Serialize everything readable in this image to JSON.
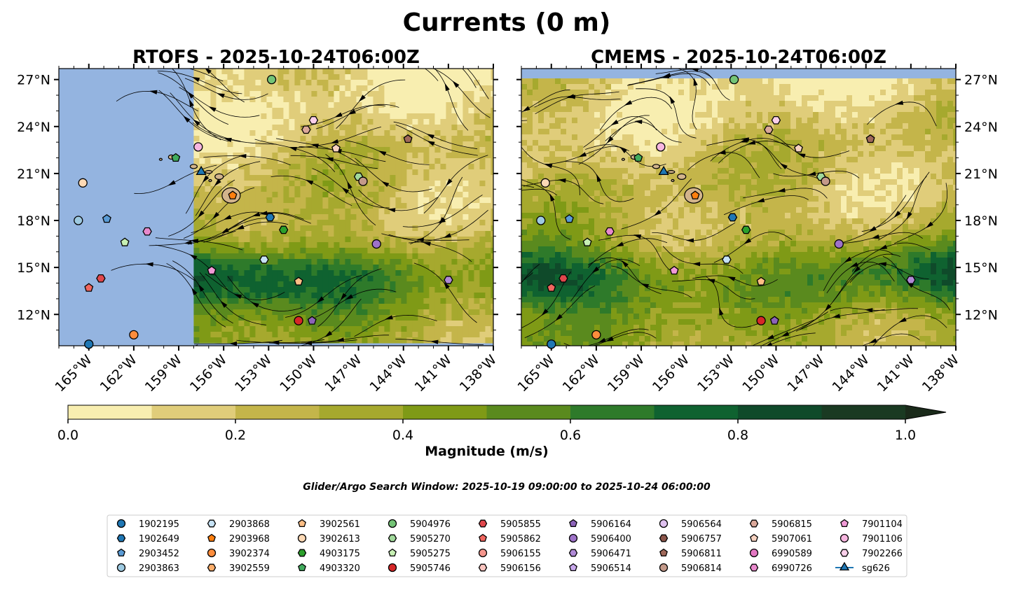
{
  "figure": {
    "title": "Currents (0 m)",
    "window_text": "Glider/Argo Search Window: 2025-10-19 09:00:00 to 2025-10-24 06:00:00"
  },
  "panels": [
    {
      "id": "rtofs",
      "title": "RTOFS - 2025-10-24T06:00Z",
      "lat_labels_side": "left",
      "data_lon_min": -158.0
    },
    {
      "id": "cmems",
      "title": "CMEMS - 2025-10-24T06:00Z",
      "lat_labels_side": "right",
      "data_lon_min": -168.0
    }
  ],
  "axes": {
    "lon_range": [
      -167.0,
      -138.0
    ],
    "lat_range": [
      10.0,
      27.7
    ],
    "lon_ticks": [
      -165,
      -162,
      -159,
      -156,
      -153,
      -150,
      -147,
      -144,
      -141,
      -138
    ],
    "lon_tick_labels": [
      "165°W",
      "162°W",
      "159°W",
      "156°W",
      "153°W",
      "150°W",
      "147°W",
      "144°W",
      "141°W",
      "138°W"
    ],
    "lat_ticks": [
      12,
      15,
      18,
      21,
      24,
      27
    ],
    "lat_tick_labels": [
      "12°N",
      "15°N",
      "18°N",
      "21°N",
      "24°N",
      "27°N"
    ]
  },
  "colorbar": {
    "label": "Magnitude (m/s)",
    "levels": [
      0,
      0.1,
      0.2,
      0.3,
      0.4,
      0.5,
      0.6,
      0.7,
      0.8,
      0.9,
      1.0
    ],
    "tick_values": [
      0,
      0.2,
      0.4,
      0.6,
      0.8,
      1.0
    ],
    "tick_labels": [
      "0.0",
      "0.2",
      "0.4",
      "0.6",
      "0.8",
      "1.0"
    ],
    "colors": [
      "#f8eeb0",
      "#e0cd7a",
      "#c4b54a",
      "#a6a92e",
      "#7f9a16",
      "#5a8a1e",
      "#2e7a2a",
      "#0f6230",
      "#0f4a2a",
      "#1a3a22",
      "#1a2a1a"
    ],
    "extend": "max"
  },
  "colors": {
    "ocean_no_data": "#94b4e0",
    "land": "#d2b48c",
    "streamline": "#000000"
  },
  "chart_data": [
    {
      "type": "scatter",
      "title": "RTOFS - 2025-10-24T06:00Z",
      "field": "surface current magnitude (m/s) with streamlines",
      "xlim": [
        -167.0,
        -138.0
      ],
      "ylim": [
        10.0,
        27.7
      ],
      "points": [
        {
          "name": "1902195",
          "lon": -165.0,
          "lat": 10.1
        },
        {
          "name": "3902374",
          "lon": -162.0,
          "lat": 10.7
        },
        {
          "name": "2903863",
          "lon": -165.7,
          "lat": 18.0
        },
        {
          "name": "3902613",
          "lon": -165.4,
          "lat": 20.4
        },
        {
          "name": "2903452",
          "lon": -163.8,
          "lat": 18.1
        },
        {
          "name": "5905275",
          "lon": -162.6,
          "lat": 16.6
        },
        {
          "name": "5905862",
          "lon": -165.0,
          "lat": 13.7
        },
        {
          "name": "5905855",
          "lon": -164.2,
          "lat": 14.3
        },
        {
          "name": "6990726",
          "lon": -161.1,
          "lat": 17.3
        },
        {
          "name": "4903320",
          "lon": -159.2,
          "lat": 22.0
        },
        {
          "name": "7901106",
          "lon": -157.7,
          "lat": 22.7
        },
        {
          "name": "sg626",
          "lon": -157.5,
          "lat": 21.1
        },
        {
          "name": "2903968",
          "lon": -155.4,
          "lat": 19.6
        },
        {
          "name": "1902649",
          "lon": -152.9,
          "lat": 18.2
        },
        {
          "name": "4903175",
          "lon": -152.0,
          "lat": 17.4
        },
        {
          "name": "2903868",
          "lon": -153.3,
          "lat": 15.5
        },
        {
          "name": "5904976",
          "lon": -152.8,
          "lat": 27.0
        },
        {
          "name": "7902266",
          "lon": -150.0,
          "lat": 24.4
        },
        {
          "name": "5906815",
          "lon": -150.5,
          "lat": 23.8
        },
        {
          "name": "7901104",
          "lon": -156.8,
          "lat": 14.8
        },
        {
          "name": "5907061",
          "lon": -148.5,
          "lat": 22.6
        },
        {
          "name": "5905270",
          "lon": -147.0,
          "lat": 20.8
        },
        {
          "name": "5906814",
          "lon": -146.7,
          "lat": 20.5
        },
        {
          "name": "5906811",
          "lon": -143.7,
          "lat": 23.2
        },
        {
          "name": "5906400",
          "lon": -145.8,
          "lat": 16.5
        },
        {
          "name": "3902561",
          "lon": -151.0,
          "lat": 14.1
        },
        {
          "name": "5905746",
          "lon": -151.0,
          "lat": 11.6
        },
        {
          "name": "5906164",
          "lon": -150.1,
          "lat": 11.6
        },
        {
          "name": "5906471",
          "lon": -141.0,
          "lat": 14.2
        }
      ]
    },
    {
      "type": "scatter",
      "title": "CMEMS - 2025-10-24T06:00Z",
      "field": "surface current magnitude (m/s) with streamlines",
      "xlim": [
        -167.0,
        -138.0
      ],
      "ylim": [
        10.0,
        27.7
      ],
      "points": [
        {
          "name": "1902195",
          "lon": -165.0,
          "lat": 10.1
        },
        {
          "name": "3902374",
          "lon": -162.0,
          "lat": 10.7
        },
        {
          "name": "2903863",
          "lon": -165.7,
          "lat": 18.0
        },
        {
          "name": "3902613",
          "lon": -165.4,
          "lat": 20.4
        },
        {
          "name": "2903452",
          "lon": -163.8,
          "lat": 18.1
        },
        {
          "name": "5905275",
          "lon": -162.6,
          "lat": 16.6
        },
        {
          "name": "5905862",
          "lon": -165.0,
          "lat": 13.7
        },
        {
          "name": "5905855",
          "lon": -164.2,
          "lat": 14.3
        },
        {
          "name": "6990726",
          "lon": -161.1,
          "lat": 17.3
        },
        {
          "name": "4903320",
          "lon": -159.2,
          "lat": 22.0
        },
        {
          "name": "7901106",
          "lon": -157.7,
          "lat": 22.7
        },
        {
          "name": "sg626",
          "lon": -157.5,
          "lat": 21.1
        },
        {
          "name": "2903968",
          "lon": -155.4,
          "lat": 19.6
        },
        {
          "name": "1902649",
          "lon": -152.9,
          "lat": 18.2
        },
        {
          "name": "4903175",
          "lon": -152.0,
          "lat": 17.4
        },
        {
          "name": "2903868",
          "lon": -153.3,
          "lat": 15.5
        },
        {
          "name": "5904976",
          "lon": -152.8,
          "lat": 27.0
        },
        {
          "name": "7902266",
          "lon": -150.0,
          "lat": 24.4
        },
        {
          "name": "5906815",
          "lon": -150.5,
          "lat": 23.8
        },
        {
          "name": "7901104",
          "lon": -156.8,
          "lat": 14.8
        },
        {
          "name": "5907061",
          "lon": -148.5,
          "lat": 22.6
        },
        {
          "name": "5905270",
          "lon": -147.0,
          "lat": 20.8
        },
        {
          "name": "5906814",
          "lon": -146.7,
          "lat": 20.5
        },
        {
          "name": "5906811",
          "lon": -143.7,
          "lat": 23.2
        },
        {
          "name": "5906400",
          "lon": -145.8,
          "lat": 16.5
        },
        {
          "name": "3902561",
          "lon": -151.0,
          "lat": 14.1
        },
        {
          "name": "5905746",
          "lon": -151.0,
          "lat": 11.6
        },
        {
          "name": "5906164",
          "lon": -150.1,
          "lat": 11.6
        },
        {
          "name": "5906471",
          "lon": -141.0,
          "lat": 14.2
        }
      ]
    }
  ],
  "legend": {
    "placement": "bottom-center",
    "columns": 9,
    "items": [
      {
        "label": "1902195",
        "marker": "circle",
        "color": "#1f77b4"
      },
      {
        "label": "1902649",
        "marker": "hexagon",
        "color": "#1f77b4"
      },
      {
        "label": "2903452",
        "marker": "pentagon",
        "color": "#5a9bd5"
      },
      {
        "label": "2903863",
        "marker": "circle",
        "color": "#9ecae1"
      },
      {
        "label": "2903868",
        "marker": "hexagon",
        "color": "#c6e2f5"
      },
      {
        "label": "2903968",
        "marker": "pentagon",
        "color": "#ff7f0e"
      },
      {
        "label": "3902374",
        "marker": "circle",
        "color": "#fd8d3c"
      },
      {
        "label": "3902559",
        "marker": "hexagon",
        "color": "#fdae6b"
      },
      {
        "label": "3902561",
        "marker": "pentagon",
        "color": "#fdbe85"
      },
      {
        "label": "3902613",
        "marker": "circle",
        "color": "#fdd9b5"
      },
      {
        "label": "4903175",
        "marker": "hexagon",
        "color": "#2ca02c"
      },
      {
        "label": "4903320",
        "marker": "pentagon",
        "color": "#41ab5d"
      },
      {
        "label": "5904976",
        "marker": "circle",
        "color": "#74c476"
      },
      {
        "label": "5905270",
        "marker": "hexagon",
        "color": "#a1d99b"
      },
      {
        "label": "5905275",
        "marker": "pentagon",
        "color": "#c7f0b4"
      },
      {
        "label": "5905746",
        "marker": "circle",
        "color": "#d62728"
      },
      {
        "label": "5905855",
        "marker": "hexagon",
        "color": "#e0474c"
      },
      {
        "label": "5905862",
        "marker": "pentagon",
        "color": "#f0665f"
      },
      {
        "label": "5906155",
        "marker": "circle",
        "color": "#f4958c"
      },
      {
        "label": "5906156",
        "marker": "hexagon",
        "color": "#fbc5c0"
      },
      {
        "label": "5906164",
        "marker": "pentagon",
        "color": "#8c63b8"
      },
      {
        "label": "5906400",
        "marker": "circle",
        "color": "#9e72c8"
      },
      {
        "label": "5906471",
        "marker": "hexagon",
        "color": "#b08ad6"
      },
      {
        "label": "5906514",
        "marker": "pentagon",
        "color": "#c8a8ec"
      },
      {
        "label": "5906564",
        "marker": "circle",
        "color": "#e0c2f0"
      },
      {
        "label": "5906757",
        "marker": "hexagon",
        "color": "#8c564b"
      },
      {
        "label": "5906811",
        "marker": "pentagon",
        "color": "#a0695a"
      },
      {
        "label": "5906814",
        "marker": "circle",
        "color": "#c49a8a"
      },
      {
        "label": "5906815",
        "marker": "hexagon",
        "color": "#dba89a"
      },
      {
        "label": "5907061",
        "marker": "pentagon",
        "color": "#f7d2c0"
      },
      {
        "label": "6990589",
        "marker": "circle",
        "color": "#e377c2"
      },
      {
        "label": "6990726",
        "marker": "hexagon",
        "color": "#e889cc"
      },
      {
        "label": "7901104",
        "marker": "pentagon",
        "color": "#f09ad6"
      },
      {
        "label": "7901106",
        "marker": "circle",
        "color": "#f7b6e0"
      },
      {
        "label": "7902266",
        "marker": "hexagon",
        "color": "#fbd0ea"
      },
      {
        "label": "sg626",
        "marker": "triangle-line",
        "color": "#1f77b4"
      }
    ]
  }
}
